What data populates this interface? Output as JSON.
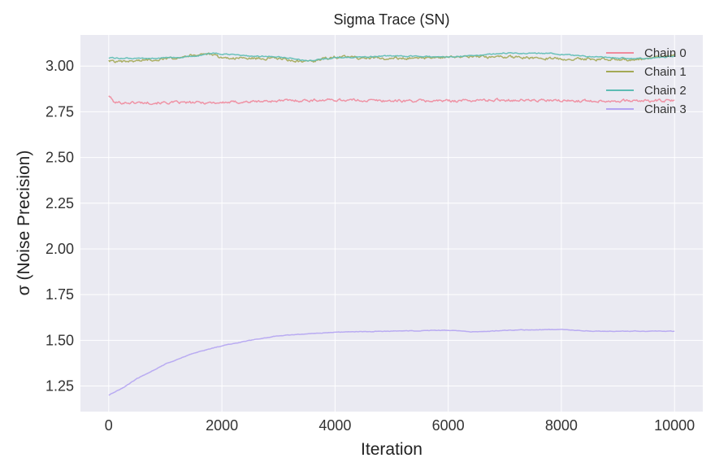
{
  "chart_data": {
    "type": "line",
    "title": "Sigma Trace (SN)",
    "xlabel": "Iteration",
    "ylabel": "σ (Noise Precision)",
    "xlim": [
      -500,
      10500
    ],
    "ylim": [
      1.11,
      3.17
    ],
    "x_ticks": [
      0,
      2000,
      4000,
      6000,
      8000,
      10000
    ],
    "x_tick_labels": [
      "0",
      "2000",
      "4000",
      "6000",
      "8000",
      "10000"
    ],
    "y_ticks": [
      1.25,
      1.5,
      1.75,
      2.0,
      2.25,
      2.5,
      2.75,
      3.0
    ],
    "y_tick_labels": [
      "1.25",
      "1.50",
      "1.75",
      "2.00",
      "2.25",
      "2.50",
      "2.75",
      "3.00"
    ],
    "grid": true,
    "legend_position": "top-right",
    "series": [
      {
        "name": "Chain 0",
        "color": "#f08a9c",
        "noise": 0.012,
        "points": [
          [
            0,
            2.84
          ],
          [
            100,
            2.8
          ],
          [
            500,
            2.8
          ],
          [
            1000,
            2.8
          ],
          [
            2000,
            2.8
          ],
          [
            3000,
            2.81
          ],
          [
            4000,
            2.815
          ],
          [
            5000,
            2.81
          ],
          [
            6000,
            2.81
          ],
          [
            7000,
            2.815
          ],
          [
            8000,
            2.81
          ],
          [
            9000,
            2.81
          ],
          [
            10000,
            2.81
          ]
        ]
      },
      {
        "name": "Chain 1",
        "color": "#a3a955",
        "noise": 0.012,
        "points": [
          [
            0,
            3.03
          ],
          [
            200,
            3.02
          ],
          [
            500,
            3.03
          ],
          [
            1000,
            3.04
          ],
          [
            1700,
            3.07
          ],
          [
            2000,
            3.045
          ],
          [
            3000,
            3.04
          ],
          [
            3500,
            3.02
          ],
          [
            4000,
            3.05
          ],
          [
            5000,
            3.04
          ],
          [
            6000,
            3.05
          ],
          [
            7000,
            3.05
          ],
          [
            8000,
            3.04
          ],
          [
            9000,
            3.035
          ],
          [
            9500,
            3.04
          ],
          [
            10000,
            3.06
          ]
        ]
      },
      {
        "name": "Chain 2",
        "color": "#5cbcb4",
        "noise": 0.005,
        "points": [
          [
            0,
            3.045
          ],
          [
            500,
            3.04
          ],
          [
            1000,
            3.045
          ],
          [
            1500,
            3.05
          ],
          [
            1800,
            3.07
          ],
          [
            2500,
            3.055
          ],
          [
            3000,
            3.05
          ],
          [
            3500,
            3.03
          ],
          [
            4000,
            3.045
          ],
          [
            5000,
            3.055
          ],
          [
            6000,
            3.05
          ],
          [
            7000,
            3.07
          ],
          [
            7800,
            3.07
          ],
          [
            8500,
            3.05
          ],
          [
            9500,
            3.04
          ],
          [
            10000,
            3.055
          ]
        ]
      },
      {
        "name": "Chain 3",
        "color": "#b4a4f2",
        "noise": 0.0025,
        "points": [
          [
            0,
            1.2
          ],
          [
            250,
            1.24
          ],
          [
            500,
            1.29
          ],
          [
            750,
            1.33
          ],
          [
            1000,
            1.37
          ],
          [
            1250,
            1.4
          ],
          [
            1500,
            1.43
          ],
          [
            2000,
            1.47
          ],
          [
            2500,
            1.5
          ],
          [
            3000,
            1.525
          ],
          [
            3500,
            1.535
          ],
          [
            4000,
            1.545
          ],
          [
            5000,
            1.55
          ],
          [
            6000,
            1.555
          ],
          [
            6500,
            1.545
          ],
          [
            7000,
            1.555
          ],
          [
            8000,
            1.56
          ],
          [
            8500,
            1.55
          ],
          [
            9000,
            1.55
          ],
          [
            10000,
            1.55
          ]
        ]
      }
    ]
  }
}
